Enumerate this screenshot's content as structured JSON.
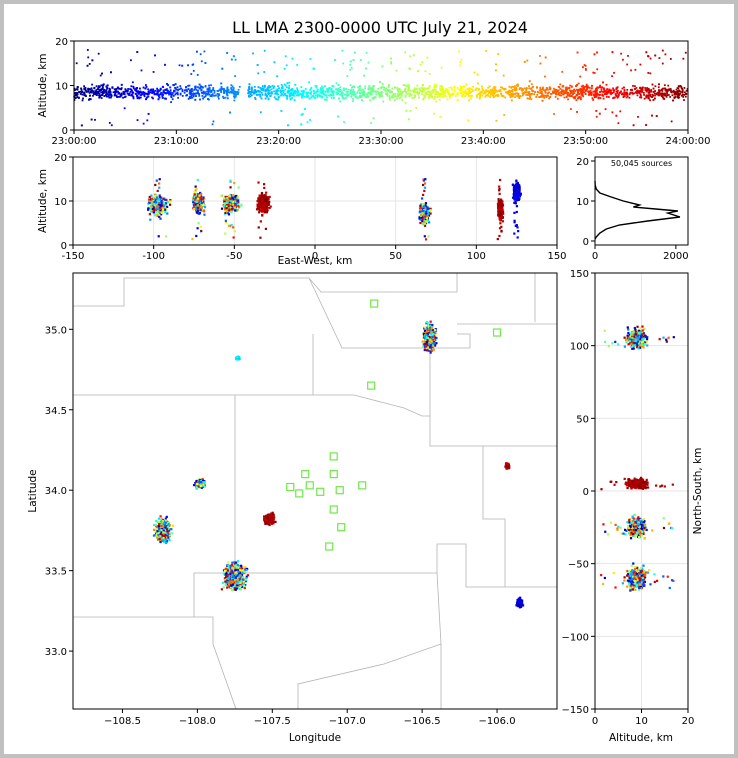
{
  "chart_data": [
    {
      "id": "time_height",
      "type": "scatter",
      "title": "LL LMA 2300-0000 UTC July 21, 2024",
      "xlabel": "",
      "ylabel": "Altitude, km",
      "x_ticks": [
        "23:00:00",
        "23:10:00",
        "23:20:00",
        "23:30:00",
        "23:40:00",
        "23:50:00",
        "24:00:00"
      ],
      "xlim_minutes": [
        0,
        60
      ],
      "ylim": [
        0,
        20
      ],
      "y_ticks": [
        0,
        10,
        20
      ],
      "colormap": "jet (time)",
      "gap_minutes": [
        16.2,
        17.0
      ],
      "altitude_band_km": [
        5,
        12
      ]
    },
    {
      "id": "ew_height",
      "type": "scatter",
      "xlabel": "East-West, km",
      "ylabel": "Altitude, km",
      "xlim": [
        -150,
        150
      ],
      "x_ticks": [
        -150,
        -100,
        -50,
        0,
        50,
        100,
        150
      ],
      "ylim": [
        0,
        20
      ],
      "y_ticks": [
        0,
        10,
        20
      ],
      "grid": true,
      "clusters_ew_km": [
        {
          "x": -97,
          "w": 12,
          "z": 9.0,
          "color": "mixed"
        },
        {
          "x": -72,
          "w": 7,
          "z": 9.5,
          "color": "mixed"
        },
        {
          "x": -52,
          "w": 10,
          "z": 9.5,
          "color": "mixed"
        },
        {
          "x": -32,
          "w": 7,
          "z": 9.5,
          "color": "dark red"
        },
        {
          "x": 68,
          "w": 6,
          "z": 7.0,
          "color": "mixed"
        },
        {
          "x": 115,
          "w": 3,
          "z": 8.0,
          "color": "dark red"
        },
        {
          "x": 125,
          "w": 4,
          "z": 12.0,
          "color": "blue"
        }
      ]
    },
    {
      "id": "alt_histogram",
      "type": "line",
      "annotation": "50,045 sources",
      "xlim": [
        0,
        2300
      ],
      "x_ticks": [
        0,
        2000
      ],
      "ylim": [
        -1,
        21
      ],
      "y_ticks": [
        0,
        10,
        20
      ],
      "profile": [
        [
          0.5,
          0
        ],
        [
          1,
          30
        ],
        [
          2,
          120
        ],
        [
          3,
          280
        ],
        [
          4,
          600
        ],
        [
          5,
          1300
        ],
        [
          6,
          2100
        ],
        [
          7,
          1800
        ],
        [
          7.5,
          2050
        ],
        [
          8,
          1500
        ],
        [
          8.5,
          950
        ],
        [
          9,
          1100
        ],
        [
          10,
          700
        ],
        [
          11,
          400
        ],
        [
          12,
          120
        ],
        [
          13,
          30
        ],
        [
          14,
          5
        ],
        [
          15,
          0
        ]
      ]
    },
    {
      "id": "plan_view",
      "type": "scatter",
      "xlabel": "Longitude",
      "ylabel": "Latitude",
      "xlim": [
        -108.83,
        -105.6
      ],
      "ylim": [
        32.64,
        35.35
      ],
      "x_ticks": [
        -108.5,
        -108.0,
        -107.5,
        -107.0,
        -106.5,
        -106.0
      ],
      "y_ticks": [
        33.0,
        33.5,
        34.0,
        34.5,
        35.0
      ],
      "stations": [
        {
          "lon": -106.82,
          "lat": 35.16
        },
        {
          "lon": -106.0,
          "lat": 34.98
        },
        {
          "lon": -106.84,
          "lat": 34.65
        },
        {
          "lon": -107.09,
          "lat": 34.21
        },
        {
          "lon": -107.28,
          "lat": 34.1
        },
        {
          "lon": -107.09,
          "lat": 34.1
        },
        {
          "lon": -107.38,
          "lat": 34.02
        },
        {
          "lon": -107.25,
          "lat": 34.03
        },
        {
          "lon": -107.32,
          "lat": 33.98
        },
        {
          "lon": -107.18,
          "lat": 33.99
        },
        {
          "lon": -107.05,
          "lat": 34.0
        },
        {
          "lon": -106.9,
          "lat": 34.03
        },
        {
          "lon": -107.09,
          "lat": 33.88
        },
        {
          "lon": -107.04,
          "lat": 33.77
        },
        {
          "lon": -107.12,
          "lat": 33.65
        }
      ],
      "clusters": [
        {
          "lon": -106.45,
          "lat": 34.95,
          "rx": 0.06,
          "ry": 0.13,
          "color": "mixed"
        },
        {
          "lon": -107.73,
          "lat": 34.82,
          "rx": 0.02,
          "ry": 0.015,
          "color": "cyan"
        },
        {
          "lon": -107.98,
          "lat": 34.04,
          "rx": 0.05,
          "ry": 0.04,
          "color": "mixed"
        },
        {
          "lon": -108.23,
          "lat": 33.75,
          "rx": 0.08,
          "ry": 0.12,
          "color": "mixed"
        },
        {
          "lon": -107.52,
          "lat": 33.82,
          "rx": 0.05,
          "ry": 0.05,
          "color": "dark red"
        },
        {
          "lon": -107.75,
          "lat": 33.47,
          "rx": 0.12,
          "ry": 0.13,
          "color": "mixed"
        },
        {
          "lon": -105.93,
          "lat": 34.15,
          "rx": 0.02,
          "ry": 0.03,
          "color": "dark red"
        },
        {
          "lon": -105.85,
          "lat": 33.3,
          "rx": 0.03,
          "ry": 0.04,
          "color": "blue"
        }
      ]
    },
    {
      "id": "ns_height",
      "type": "scatter",
      "xlabel": "Altitude, km",
      "ylabel": "North-South, km",
      "xlim": [
        0,
        20
      ],
      "x_ticks": [
        0,
        10,
        20
      ],
      "ylim": [
        -150,
        150
      ],
      "y_ticks": [
        -150,
        -100,
        -50,
        0,
        50,
        100,
        150
      ],
      "grid": true,
      "clusters_ns_km": [
        {
          "y": 105,
          "h": 12,
          "color": "mixed"
        },
        {
          "y": 5,
          "h": 6,
          "color": "dark red"
        },
        {
          "y": -25,
          "h": 12,
          "color": "mixed"
        },
        {
          "y": -60,
          "h": 14,
          "color": "mixed"
        }
      ]
    }
  ]
}
